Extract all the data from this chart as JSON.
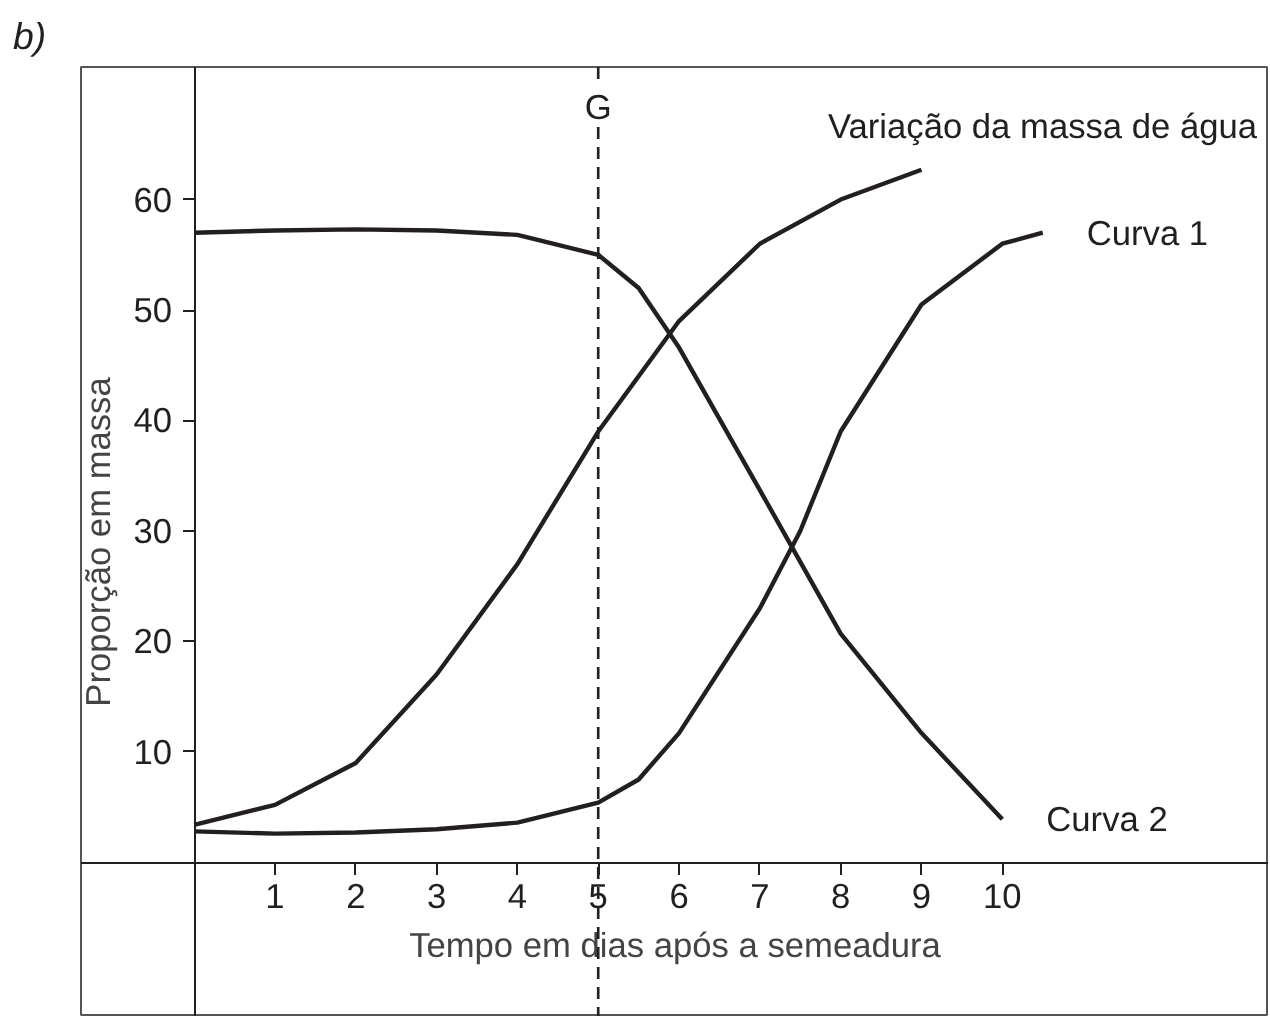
{
  "chart_data": {
    "type": "line",
    "xlabel": "Tempo em dias após a semeadura",
    "ylabel": "Proporção em massa",
    "x": [
      0,
      1,
      2,
      3,
      4,
      5,
      5.5,
      6,
      7,
      7.5,
      8,
      9,
      10,
      10.5
    ],
    "series": [
      {
        "name": "Curva 1",
        "color": "#231f20",
        "values": [
          2.8,
          2.6,
          2.7,
          3,
          3.6,
          5.4,
          7.5,
          11.7,
          23,
          30,
          39,
          50.5,
          56,
          57
        ]
      },
      {
        "name": "Variação da massa de água",
        "color": "#231f20",
        "x": [
          0,
          1,
          2,
          3,
          4,
          5,
          6,
          7,
          8,
          9
        ],
        "values": [
          3.4,
          5.2,
          9,
          17,
          27,
          39,
          49,
          56,
          60,
          62.7
        ]
      },
      {
        "name": "Curva 2",
        "color": "#231f20",
        "x": [
          0,
          1,
          2,
          3,
          4,
          5,
          5.5,
          6,
          7,
          8,
          9,
          10
        ],
        "values": [
          57,
          57.2,
          57.3,
          57.2,
          56.8,
          55,
          52,
          46.6,
          33.7,
          20.7,
          11.7,
          3.9
        ]
      }
    ],
    "xlim": [
      -1.4,
      13.3
    ],
    "ylim": [
      -14,
      72
    ],
    "xticks": [
      1,
      2,
      3,
      4,
      5,
      6,
      7,
      8,
      9,
      10
    ],
    "yticks": [
      10,
      20,
      30,
      40,
      50,
      60
    ],
    "grid": false,
    "marker": "none",
    "line_style": "solid",
    "ref_lines": [
      {
        "axis": "x",
        "value": 5,
        "label": "G",
        "line_style": "dashed"
      }
    ],
    "annotations": [
      "b)"
    ]
  }
}
